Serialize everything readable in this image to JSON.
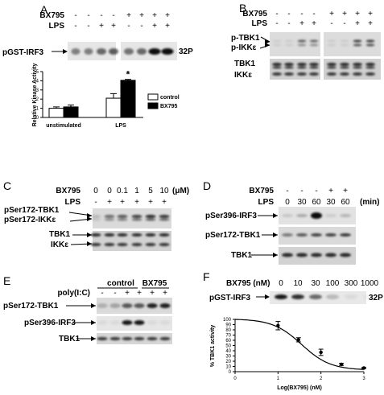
{
  "panels": {
    "A": {
      "letter": "A",
      "treatments": [
        {
          "label": "BX795",
          "values": [
            "-",
            "-",
            "-",
            "-",
            "+",
            "+",
            "+",
            "+"
          ]
        },
        {
          "label": "LPS",
          "values": [
            "-",
            "-",
            "+",
            "+",
            "-",
            "-",
            "+",
            "+"
          ]
        }
      ],
      "blot_label": "pGST-IRF3",
      "isotope": "32P"
    },
    "B": {
      "letter": "B",
      "treatments": [
        {
          "label": "BX795",
          "values": [
            "-",
            "-",
            "-",
            "-",
            "+",
            "+",
            "+",
            "+"
          ]
        },
        {
          "label": "LPS",
          "values": [
            "-",
            "-",
            "+",
            "+",
            "-",
            "-",
            "+",
            "+"
          ]
        }
      ],
      "blot_labels": [
        "p-TBK1",
        "p-IKKε",
        "TBK1",
        "IKKε"
      ]
    },
    "C": {
      "letter": "C",
      "treatments": [
        {
          "label": "BX795",
          "values": [
            "0",
            "0",
            "0.1",
            "1",
            "5",
            "10"
          ],
          "unit": "(μM)"
        },
        {
          "label": "LPS",
          "values": [
            "-",
            "+",
            "+",
            "+",
            "+",
            "+"
          ]
        }
      ],
      "blot_labels": [
        "pSer172-TBK1",
        "pSer172-IKKε",
        "TBK1",
        "IKKε"
      ]
    },
    "D": {
      "letter": "D",
      "treatments": [
        {
          "label": "BX795",
          "values": [
            "-",
            "-",
            "-",
            "+",
            "+"
          ]
        },
        {
          "label": "LPS",
          "values": [
            "0",
            "30",
            "60",
            "30",
            "60"
          ],
          "unit": "(min)"
        }
      ],
      "blot_labels": [
        "pSer396-IRF3",
        "pSer172-TBK1",
        "TBK1"
      ]
    },
    "E": {
      "letter": "E",
      "groups": [
        "control",
        "BX795"
      ],
      "treatments": [
        {
          "label": "poly(I:C)",
          "values": [
            "-",
            "-",
            "+",
            "+",
            "+",
            "+"
          ]
        }
      ],
      "blot_labels": [
        "pSer172-TBK1",
        "pSer396-IRF3",
        "TBK1"
      ]
    },
    "F": {
      "letter": "F",
      "treatment_label": "BX795 (nM)",
      "treatment_values": [
        "0",
        "10",
        "30",
        "100",
        "300",
        "1000"
      ],
      "blot_label": "pGST-IRF3",
      "isotope": "32P"
    }
  },
  "chart_data": [
    {
      "type": "bar",
      "panel": "A",
      "categories": [
        "unstimulated",
        "LPS"
      ],
      "series": [
        {
          "name": "control",
          "values": [
            1.0,
            2.1
          ],
          "errors": [
            0.15,
            0.5
          ],
          "color": "#ffffff"
        },
        {
          "name": "BX795",
          "values": [
            1.15,
            4.05
          ],
          "errors": [
            0.2,
            0.1
          ],
          "color": "#000000"
        }
      ],
      "ylabel": "Relative Kinase Activity",
      "ylim": [
        0,
        5
      ],
      "yticks": [
        0,
        1,
        2,
        3,
        4,
        5
      ],
      "annotations": [
        "*"
      ],
      "legend_position": "right"
    },
    {
      "type": "line",
      "panel": "F",
      "x": [
        1.0,
        1.477,
        2.0,
        2.477,
        3.0
      ],
      "y": [
        88,
        61,
        37,
        14,
        7
      ],
      "errors": [
        8,
        4,
        6,
        2,
        1
      ],
      "fit": {
        "top": 101,
        "bottom": 3,
        "ec50_log": 1.55,
        "hill": -1.3
      },
      "xlabel": "Log(BX795) (nM)",
      "ylabel": "% TBK1 activity",
      "xlim": [
        0,
        3
      ],
      "ylim": [
        0,
        100
      ],
      "xticks": [
        0,
        1,
        2,
        3
      ],
      "yticks": [
        0,
        10,
        20,
        30,
        40,
        50,
        60,
        70,
        80,
        90,
        100
      ]
    }
  ]
}
